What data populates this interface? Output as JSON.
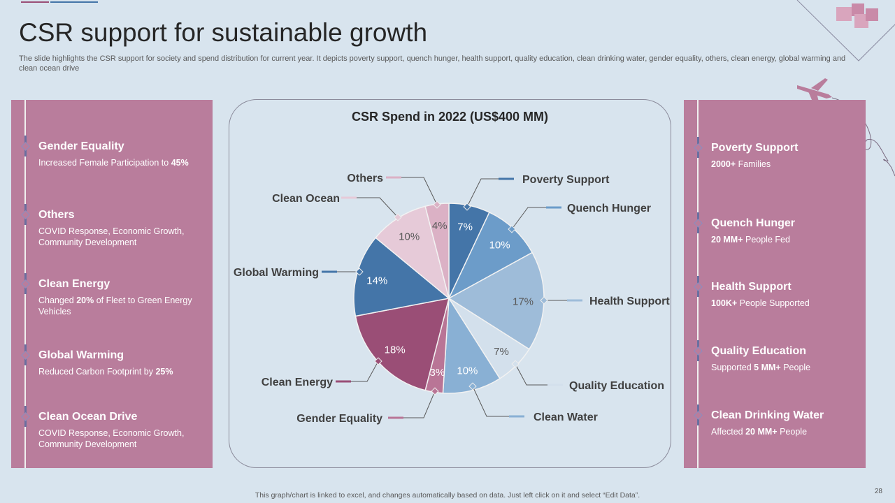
{
  "title": "CSR support for sustainable growth",
  "subtitle": "The slide highlights the CSR support for society and spend distribution for current year.  It depicts poverty support, quench hunger, health support, quality education, clean drinking water, gender equality, others, clean energy, global warming and clean ocean drive",
  "left_items": [
    {
      "title": "Gender Equality",
      "pre": "Increased  Female  Participation to ",
      "bold": "45%",
      "post": ""
    },
    {
      "title": "Others",
      "pre": "COVID  Response,  Economic Growth, Community  Development",
      "bold": "",
      "post": ""
    },
    {
      "title": "Clean Energy",
      "pre": "Changed ",
      "bold": "20%",
      "post": " of Fleet to Green Energy Vehicles"
    },
    {
      "title": "Global Warming",
      "pre": "Reduced  Carbon  Footprint  by ",
      "bold": "25%",
      "post": ""
    },
    {
      "title": "Clean Ocean Drive",
      "pre": "COVID  Response,  Economic Growth, Community  Development",
      "bold": "",
      "post": ""
    }
  ],
  "right_items": [
    {
      "title": "Poverty Support",
      "pre": "",
      "bold": "2000+",
      "post": " Families"
    },
    {
      "title": "Quench Hunger",
      "pre": "",
      "bold": "20 MM+",
      "post": " People Fed"
    },
    {
      "title": "Health Support",
      "pre": "",
      "bold": "100K+",
      "post": " People  Supported"
    },
    {
      "title": "Quality  Education",
      "pre": "Supported ",
      "bold": "5 MM+",
      "post": " People"
    },
    {
      "title": "Clean Drinking Water",
      "pre": "Affected ",
      "bold": "20 MM+",
      "post": " People"
    }
  ],
  "chart_data": {
    "type": "pie",
    "title": "CSR Spend in 2022 (US$400 MM)",
    "categories": [
      "Poverty Support",
      "Quench Hunger",
      "Health Support",
      "Quality  Education",
      "Clean Water",
      "Gender Equality",
      "Clean Energy",
      "Global Warming",
      "Clean Ocean",
      "Others"
    ],
    "values": [
      7,
      10,
      17,
      7,
      10,
      3,
      18,
      14,
      10,
      4
    ],
    "labels": [
      "7%",
      "10%",
      "17%",
      "7%",
      "10%",
      "3%",
      "18%",
      "14%",
      "10%",
      "4%"
    ],
    "colors": [
      "#4475a8",
      "#6c9cc9",
      "#9ebcd9",
      "#d3e0ec",
      "#89b0d4",
      "#b97596",
      "#9a4e76",
      "#4475a8",
      "#e6cad8",
      "#dbb1c5"
    ]
  },
  "footer": "This graph/chart is linked to excel,  and changes automatically based on data. Just left click on it and select “Edit Data”.",
  "page_number": "28",
  "colors": {
    "panel": "#b97d9c",
    "background": "#d8e4ee"
  }
}
